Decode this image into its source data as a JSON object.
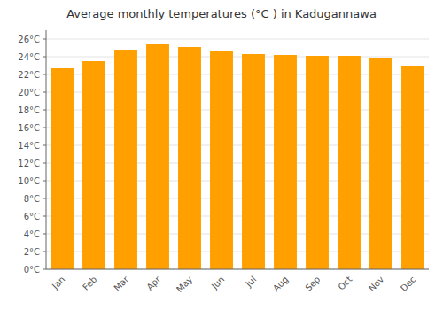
{
  "chart_data": {
    "type": "bar",
    "title": "Average monthly temperatures (°C ) in Kadugannawa",
    "categories": [
      "Jan",
      "Feb",
      "Mar",
      "Apr",
      "May",
      "Jun",
      "Jul",
      "Aug",
      "Sep",
      "Oct",
      "Nov",
      "Dec"
    ],
    "values": [
      22.7,
      23.5,
      24.8,
      25.4,
      25.1,
      24.6,
      24.3,
      24.2,
      24.1,
      24.1,
      23.8,
      23.0
    ],
    "color": "#FFA000",
    "ylim": [
      0,
      27
    ],
    "yticks": [
      {
        "value": 0,
        "label": "0°C"
      },
      {
        "value": 2,
        "label": "2°C"
      },
      {
        "value": 4,
        "label": "4°C"
      },
      {
        "value": 6,
        "label": "6°C"
      },
      {
        "value": 8,
        "label": "8°C"
      },
      {
        "value": 10,
        "label": "10°C"
      },
      {
        "value": 12,
        "label": "12°C"
      },
      {
        "value": 14,
        "label": "14°C"
      },
      {
        "value": 16,
        "label": "16°C"
      },
      {
        "value": 18,
        "label": "18°C"
      },
      {
        "value": 20,
        "label": "20°C"
      },
      {
        "value": 22,
        "label": "22°C"
      },
      {
        "value": 24,
        "label": "24°C"
      },
      {
        "value": 26,
        "label": "26°C"
      }
    ],
    "grid": true
  }
}
